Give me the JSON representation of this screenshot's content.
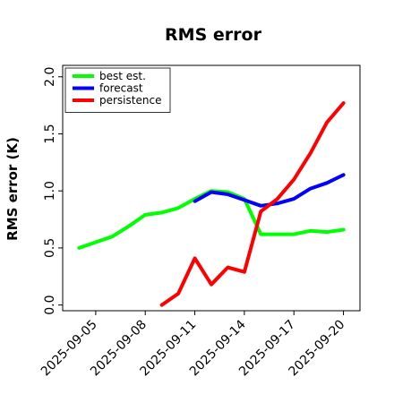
{
  "chart_data": {
    "type": "line",
    "title": "RMS error",
    "ylabel": "RMS error (K)",
    "xlabel": "",
    "ylim": [
      -0.05,
      2.1
    ],
    "yticks": [
      0.0,
      0.5,
      1.0,
      1.5,
      2.0
    ],
    "ytick_labels": [
      "0.0",
      "0.5",
      "1.0",
      "1.5",
      "2.0"
    ],
    "xticks": [
      "2025-09-05",
      "2025-09-08",
      "2025-09-11",
      "2025-09-14",
      "2025-09-17",
      "2025-09-20"
    ],
    "highlight_tick": "2025-09-11",
    "highlight_color": "#228B22",
    "xlim": [
      "2025-09-03",
      "2025-09-21"
    ],
    "legend_position": "top-left",
    "grid": false,
    "series": [
      {
        "name": "best est.",
        "color": "#00ff00",
        "x": [
          "2025-09-04",
          "2025-09-05",
          "2025-09-06",
          "2025-09-07",
          "2025-09-08",
          "2025-09-09",
          "2025-09-10",
          "2025-09-11",
          "2025-09-12",
          "2025-09-13",
          "2025-09-14",
          "2025-09-15",
          "2025-09-16",
          "2025-09-17",
          "2025-09-18",
          "2025-09-19",
          "2025-09-20"
        ],
        "values": [
          0.5,
          0.55,
          0.6,
          0.69,
          0.79,
          0.81,
          0.85,
          0.93,
          1.0,
          0.99,
          0.93,
          0.62,
          0.62,
          0.62,
          0.65,
          0.64,
          0.66
        ]
      },
      {
        "name": "forecast",
        "color": "#0000ff",
        "x": [
          "2025-09-11",
          "2025-09-12",
          "2025-09-13",
          "2025-09-14",
          "2025-09-15",
          "2025-09-16",
          "2025-09-17",
          "2025-09-18",
          "2025-09-19",
          "2025-09-20"
        ],
        "values": [
          0.91,
          0.99,
          0.97,
          0.92,
          0.87,
          0.89,
          0.93,
          1.02,
          1.07,
          1.14
        ]
      },
      {
        "name": "persistence",
        "color": "#ff0000",
        "x": [
          "2025-09-09",
          "2025-09-10",
          "2025-09-11",
          "2025-09-12",
          "2025-09-13",
          "2025-09-14",
          "2025-09-15",
          "2025-09-16",
          "2025-09-17",
          "2025-09-18",
          "2025-09-19",
          "2025-09-20"
        ],
        "values": [
          0.0,
          0.1,
          0.41,
          0.18,
          0.33,
          0.29,
          0.82,
          0.93,
          1.1,
          1.33,
          1.6,
          1.77
        ]
      }
    ]
  }
}
